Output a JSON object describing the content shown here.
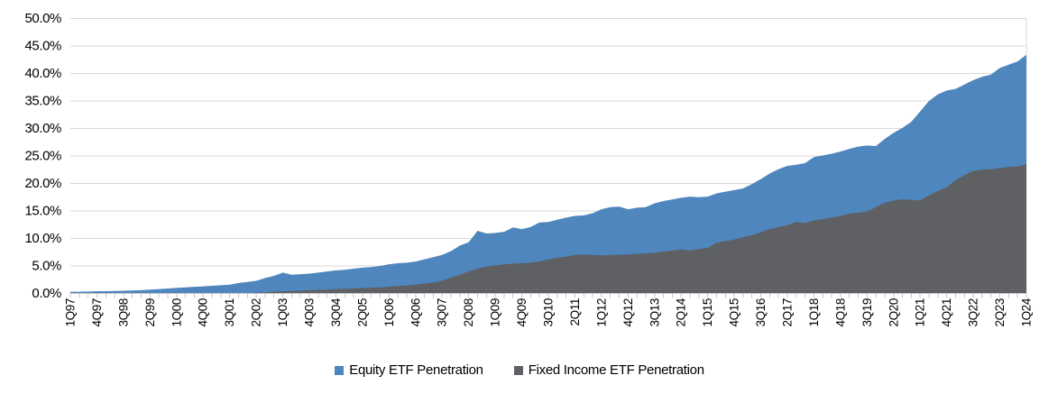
{
  "chart_data": {
    "type": "area",
    "title": "",
    "mode": "overlap",
    "note": "Two overlapping area series; gray (fixed income) drawn in front of blue (equity). Values are percent of each market.",
    "ylim": [
      0,
      50
    ],
    "y_tick_step": 5,
    "grid": true,
    "legend_position": "bottom-center",
    "grid_color": "#D9D9D9",
    "axis_color": "#C6C6C6",
    "y_tick_labels": [
      "50.0%",
      "45.0%",
      "40.0%",
      "35.0%",
      "30.0%",
      "25.0%",
      "20.0%",
      "15.0%",
      "10.0%",
      "5.0%",
      "0.0%"
    ],
    "x_label_every": 3,
    "x_tick_labels": [
      "1Q97",
      "4Q97",
      "3Q98",
      "2Q99",
      "1Q00",
      "4Q00",
      "3Q01",
      "2Q02",
      "1Q03",
      "4Q03",
      "3Q04",
      "2Q05",
      "1Q06",
      "4Q06",
      "3Q07",
      "2Q08",
      "1Q09",
      "4Q09",
      "3Q10",
      "2Q11",
      "1Q12",
      "4Q12",
      "3Q13",
      "2Q14",
      "1Q15",
      "4Q15",
      "3Q16",
      "2Q17",
      "1Q18",
      "4Q18",
      "3Q19",
      "2Q20",
      "1Q21",
      "4Q21",
      "3Q22",
      "2Q23",
      "1Q24"
    ],
    "categories": [
      "1Q97",
      "2Q97",
      "3Q97",
      "4Q97",
      "1Q98",
      "2Q98",
      "3Q98",
      "4Q98",
      "1Q99",
      "2Q99",
      "3Q99",
      "4Q99",
      "1Q00",
      "2Q00",
      "3Q00",
      "4Q00",
      "1Q01",
      "2Q01",
      "3Q01",
      "4Q01",
      "1Q02",
      "2Q02",
      "3Q02",
      "4Q02",
      "1Q03",
      "2Q03",
      "3Q03",
      "4Q03",
      "1Q04",
      "2Q04",
      "3Q04",
      "4Q04",
      "1Q05",
      "2Q05",
      "3Q05",
      "4Q05",
      "1Q06",
      "2Q06",
      "3Q06",
      "4Q06",
      "1Q07",
      "2Q07",
      "3Q07",
      "4Q07",
      "1Q08",
      "2Q08",
      "3Q08",
      "4Q08",
      "1Q09",
      "2Q09",
      "3Q09",
      "4Q09",
      "1Q10",
      "2Q10",
      "3Q10",
      "4Q10",
      "1Q11",
      "2Q11",
      "3Q11",
      "4Q11",
      "1Q12",
      "2Q12",
      "3Q12",
      "4Q12",
      "1Q13",
      "2Q13",
      "3Q13",
      "4Q13",
      "1Q14",
      "2Q14",
      "3Q14",
      "4Q14",
      "1Q15",
      "2Q15",
      "3Q15",
      "4Q15",
      "1Q16",
      "2Q16",
      "3Q16",
      "4Q16",
      "1Q17",
      "2Q17",
      "3Q17",
      "4Q17",
      "1Q18",
      "2Q18",
      "3Q18",
      "4Q18",
      "1Q19",
      "2Q19",
      "3Q19",
      "4Q19",
      "1Q20",
      "2Q20",
      "3Q20",
      "4Q20",
      "1Q21",
      "2Q21",
      "3Q21",
      "4Q21",
      "1Q22",
      "2Q22",
      "3Q22",
      "4Q22",
      "1Q23",
      "2Q23",
      "3Q23",
      "4Q23",
      "1Q24"
    ],
    "series": [
      {
        "name": "Equity ETF Penetration",
        "color": "#4E86BD",
        "values": [
          0.3,
          0.3,
          0.35,
          0.4,
          0.4,
          0.45,
          0.5,
          0.55,
          0.6,
          0.7,
          0.8,
          0.9,
          1.0,
          1.1,
          1.2,
          1.3,
          1.4,
          1.5,
          1.6,
          1.9,
          2.1,
          2.3,
          2.8,
          3.2,
          3.8,
          3.4,
          3.5,
          3.6,
          3.8,
          4.0,
          4.2,
          4.3,
          4.5,
          4.7,
          4.8,
          5.0,
          5.3,
          5.5,
          5.6,
          5.8,
          6.2,
          6.6,
          7.0,
          7.7,
          8.7,
          9.3,
          11.4,
          10.9,
          11.0,
          11.2,
          12.0,
          11.7,
          12.1,
          12.9,
          13.0,
          13.4,
          13.8,
          14.1,
          14.2,
          14.6,
          15.3,
          15.7,
          15.8,
          15.3,
          15.6,
          15.7,
          16.4,
          16.8,
          17.1,
          17.4,
          17.6,
          17.5,
          17.6,
          18.2,
          18.5,
          18.8,
          19.1,
          19.9,
          20.8,
          21.8,
          22.6,
          23.2,
          23.4,
          23.7,
          24.8,
          25.1,
          25.4,
          25.8,
          26.3,
          26.7,
          26.9,
          26.8,
          28.1,
          29.2,
          30.1,
          31.2,
          33.1,
          35.0,
          36.2,
          36.9,
          37.2,
          38.0,
          38.8,
          39.4,
          39.8,
          41.0,
          41.6,
          42.2,
          43.4
        ]
      },
      {
        "name": "Fixed Income ETF Penetration",
        "color": "#5F6064",
        "values": [
          0,
          0,
          0,
          0,
          0,
          0,
          0,
          0,
          0,
          0,
          0,
          0,
          0,
          0,
          0,
          0,
          0,
          0,
          0,
          0.05,
          0.05,
          0.1,
          0.2,
          0.3,
          0.4,
          0.45,
          0.5,
          0.6,
          0.65,
          0.7,
          0.8,
          0.85,
          0.9,
          1.0,
          1.05,
          1.1,
          1.25,
          1.35,
          1.45,
          1.6,
          1.8,
          2.0,
          2.3,
          2.9,
          3.4,
          4.0,
          4.5,
          4.9,
          5.1,
          5.3,
          5.4,
          5.5,
          5.6,
          5.8,
          6.2,
          6.5,
          6.7,
          7.0,
          7.1,
          7.0,
          6.9,
          7.0,
          7.0,
          7.1,
          7.2,
          7.3,
          7.4,
          7.6,
          7.8,
          8.0,
          7.8,
          8.1,
          8.3,
          9.2,
          9.5,
          9.8,
          10.2,
          10.6,
          11.1,
          11.7,
          12.1,
          12.4,
          13.0,
          12.8,
          13.3,
          13.5,
          13.8,
          14.1,
          14.5,
          14.7,
          14.9,
          15.7,
          16.5,
          16.9,
          17.1,
          17.0,
          16.9,
          17.8,
          18.6,
          19.3,
          20.6,
          21.5,
          22.3,
          22.5,
          22.6,
          22.8,
          23.0,
          23.1,
          23.5
        ]
      }
    ]
  },
  "legend": {
    "items": [
      {
        "label": "Equity ETF Penetration",
        "color": "#4E86BD"
      },
      {
        "label": "Fixed Income ETF Penetration",
        "color": "#5F6064"
      }
    ]
  }
}
